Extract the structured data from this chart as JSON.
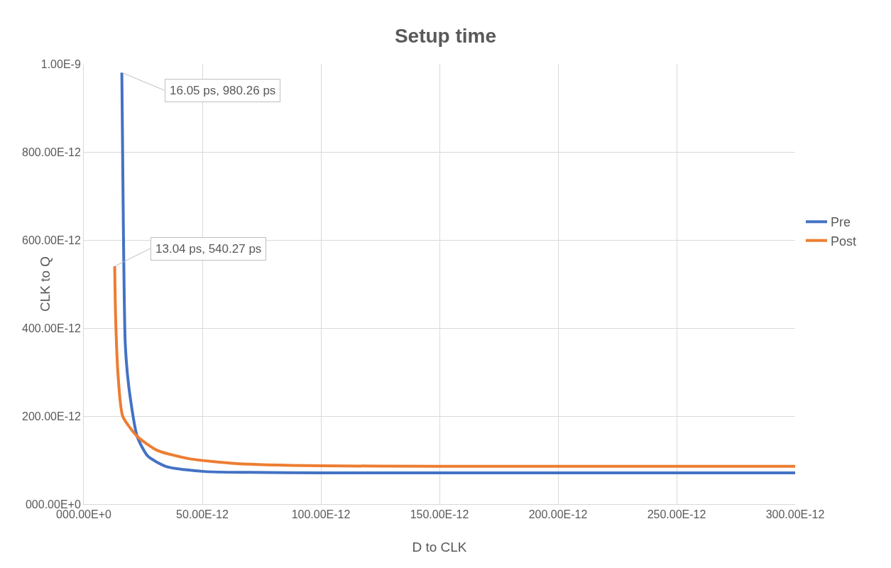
{
  "chart_data": {
    "type": "line",
    "title": "Setup time",
    "xlabel": "D to CLK",
    "ylabel": "CLK to Q",
    "xlim": [
      0,
      3e-10
    ],
    "xticks": [
      {
        "value": 0,
        "label": "000.00E+0"
      },
      {
        "value": 5e-11,
        "label": "50.00E-12"
      },
      {
        "value": 1e-10,
        "label": "100.00E-12"
      },
      {
        "value": 1.5e-10,
        "label": "150.00E-12"
      },
      {
        "value": 2e-10,
        "label": "200.00E-12"
      },
      {
        "value": 2.5e-10,
        "label": "250.00E-12"
      },
      {
        "value": 3e-10,
        "label": "300.00E-12"
      }
    ],
    "ylim": [
      0,
      1e-09
    ],
    "yticks": [
      {
        "value": 0,
        "label": "000.00E+0"
      },
      {
        "value": 2e-10,
        "label": "200.00E-12"
      },
      {
        "value": 4e-10,
        "label": "400.00E-12"
      },
      {
        "value": 6e-10,
        "label": "600.00E-12"
      },
      {
        "value": 8e-10,
        "label": "800.00E-12"
      },
      {
        "value": 1e-09,
        "label": "1.00E-9"
      }
    ],
    "grid": true,
    "legend": "right",
    "marker": "none",
    "line_style": "solid",
    "series": [
      {
        "name": "Pre",
        "color": "#4472c4",
        "x": [
          1.605e-11,
          1.67e-11,
          1.75e-11,
          1.9e-11,
          2.25e-11,
          2.7e-11,
          3.5e-11,
          5.1e-11,
          7e-11,
          1e-10,
          1.5e-10,
          2e-10,
          3e-10
        ],
        "values": [
          9.8026e-10,
          6.26e-10,
          3.64e-10,
          2.66e-10,
          1.54e-10,
          1.09e-10,
          8.5e-11,
          7.4e-11,
          7.2e-11,
          7.1e-11,
          7.1e-11,
          7.1e-11,
          7.1e-11
        ]
      },
      {
        "name": "Post",
        "color": "#ed7d31",
        "x": [
          1.304e-11,
          1.34e-11,
          1.44e-11,
          1.64e-11,
          2.25e-11,
          3.1e-11,
          4.46e-11,
          6.46e-11,
          1e-10,
          1.5e-10,
          2e-10,
          3e-10
        ],
        "values": [
          5.4027e-10,
          4.3e-10,
          2.98e-10,
          2e-10,
          1.54e-10,
          1.22e-10,
          1.03e-10,
          9.2e-11,
          8.7e-11,
          8.6e-11,
          8.6e-11,
          8.6e-11
        ]
      }
    ],
    "annotations": [
      {
        "text": "16.05 ps, 980.26 ps",
        "x": 1.605e-11,
        "y": 9.8026e-10
      },
      {
        "text": "13.04 ps, 540.27 ps",
        "x": 1.304e-11,
        "y": 5.4027e-10
      }
    ]
  }
}
